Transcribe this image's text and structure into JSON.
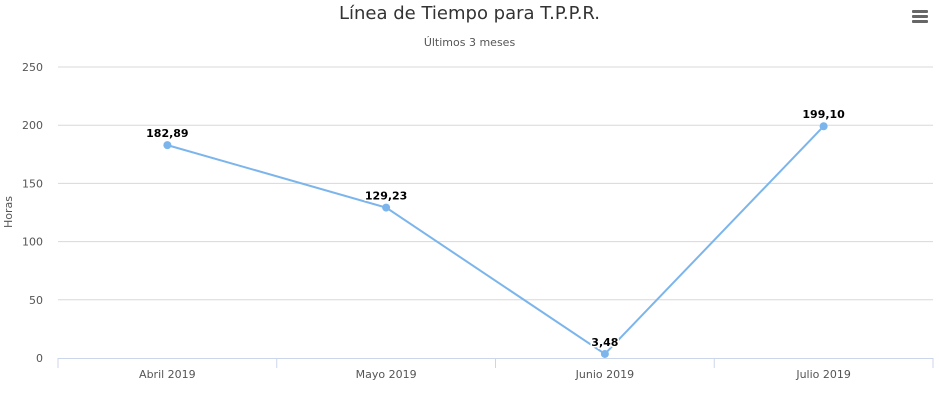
{
  "chart_data": {
    "type": "line",
    "title": "Línea de Tiempo para T.P.P.R.",
    "subtitle": "Últimos 3 meses",
    "ylabel": "Horas",
    "xlabel": "",
    "categories": [
      "Abril 2019",
      "Mayo 2019",
      "Junio 2019",
      "Julio 2019"
    ],
    "values": [
      182.89,
      129.23,
      3.48,
      199.1
    ],
    "data_labels": [
      "182,89",
      "129,23",
      "3,48",
      "199,10"
    ],
    "ylim": [
      0,
      250
    ],
    "yticks": [
      0,
      50,
      100,
      150,
      200,
      250
    ],
    "grid": true,
    "legend": "none",
    "color": "#7cb5ec"
  },
  "menu": {
    "icon": "hamburger-menu-icon"
  }
}
